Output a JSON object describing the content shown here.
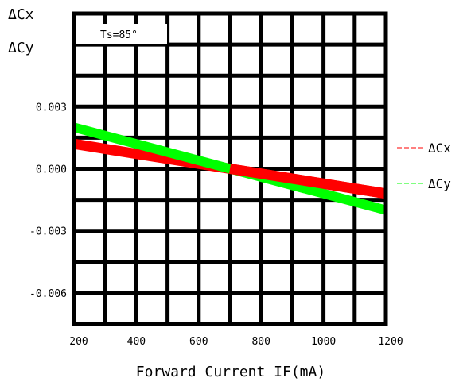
{
  "chart_data": {
    "type": "line",
    "ylabel_lines": [
      "ΔCx",
      "ΔCy"
    ],
    "xlabel": "Forward Current IF(mA)",
    "annotation": "Ts=85°",
    "xlim": [
      200,
      1200
    ],
    "ylim": [
      -0.0075,
      0.0075
    ],
    "x_ticks": [
      {
        "value": 200,
        "label": "200"
      },
      {
        "value": 400,
        "label": "400"
      },
      {
        "value": 600,
        "label": "600"
      },
      {
        "value": 800,
        "label": "800"
      },
      {
        "value": 1000,
        "label": "1000"
      },
      {
        "value": 1200,
        "label": "1200"
      }
    ],
    "y_ticks": [
      {
        "value": 0.003,
        "label": "0.003"
      },
      {
        "value": 0.0,
        "label": "0.000"
      },
      {
        "value": -0.003,
        "label": "-0.003"
      },
      {
        "value": -0.006,
        "label": "-0.006"
      }
    ],
    "grid": true,
    "legend_position": "right",
    "series": [
      {
        "name": "ΔCx",
        "color": "#ff0000",
        "x": [
          200,
          1200
        ],
        "y": [
          0.0012,
          -0.0012
        ]
      },
      {
        "name": "ΔCy",
        "color": "#00ff00",
        "x": [
          200,
          1200
        ],
        "y": [
          0.002,
          -0.002
        ]
      }
    ]
  }
}
